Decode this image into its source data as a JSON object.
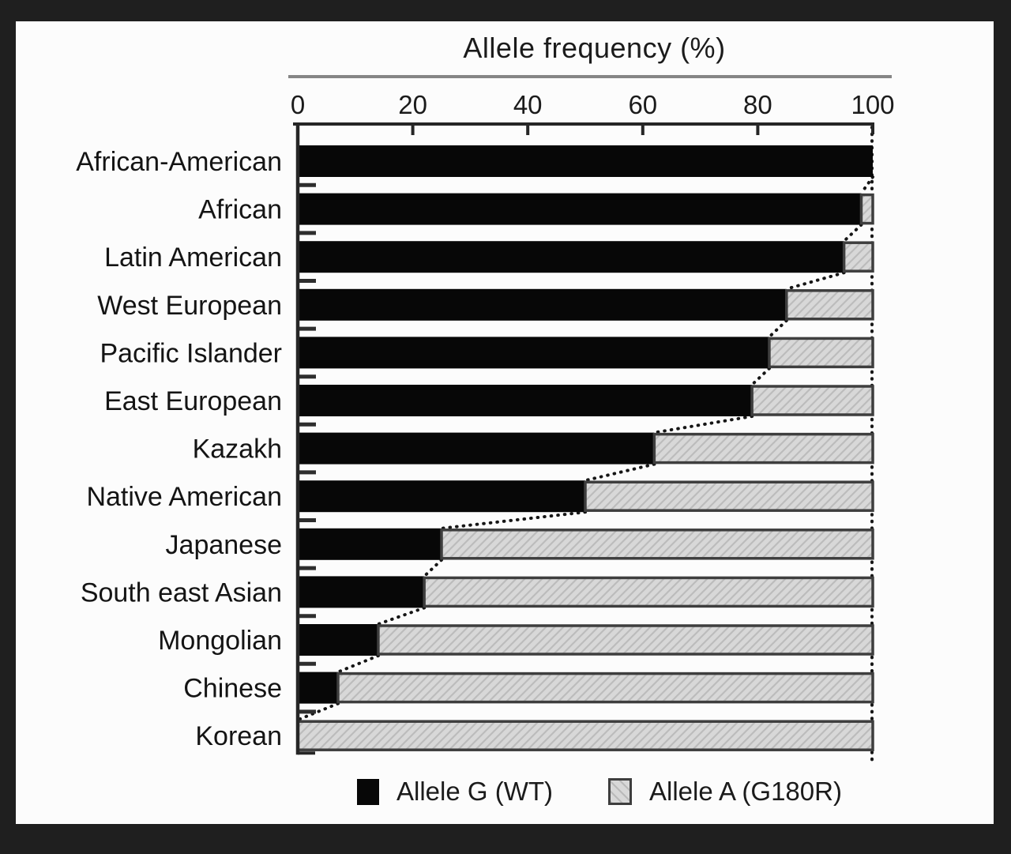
{
  "figure": {
    "surround_color": "#1f1f1f",
    "panel_color": "#fcfcfc",
    "bar_black": "#070707",
    "bar_gray_fill": "#d8d8d8",
    "bar_gray_border": "#3e3e3e",
    "axis_color": "#262626",
    "top_rule_color": "#868686",
    "text_color": "#1b1b1b"
  },
  "chart_data": {
    "type": "bar",
    "orientation": "horizontal",
    "stacked": true,
    "title": "Allele frequency (%)",
    "categories": [
      "African-American",
      "African",
      "Latin American",
      "West European",
      "Pacific Islander",
      "East European",
      "Kazakh",
      "Native American",
      "Japanese",
      "South east Asian",
      "Mongolian",
      "Chinese",
      "Korean"
    ],
    "series": [
      {
        "name": "Allele G (WT)",
        "color": "#070707",
        "values": [
          100,
          98,
          95,
          85,
          82,
          79,
          62,
          50,
          25,
          22,
          14,
          7,
          0
        ]
      },
      {
        "name": "Allele A (G180R)",
        "color": "#d8d8d8",
        "values": [
          0,
          2,
          5,
          15,
          18,
          21,
          38,
          50,
          75,
          78,
          86,
          93,
          100
        ]
      }
    ],
    "x_ticks": [
      "0",
      "20",
      "40",
      "60",
      "80",
      "100"
    ],
    "xlim": [
      0,
      100
    ],
    "grid": false,
    "legend_position": "bottom",
    "annotations": {
      "dotted_vertical_line_at": 100,
      "dotted_stairstep_connectors": "between stacked-boundary of adjacent bars"
    }
  }
}
